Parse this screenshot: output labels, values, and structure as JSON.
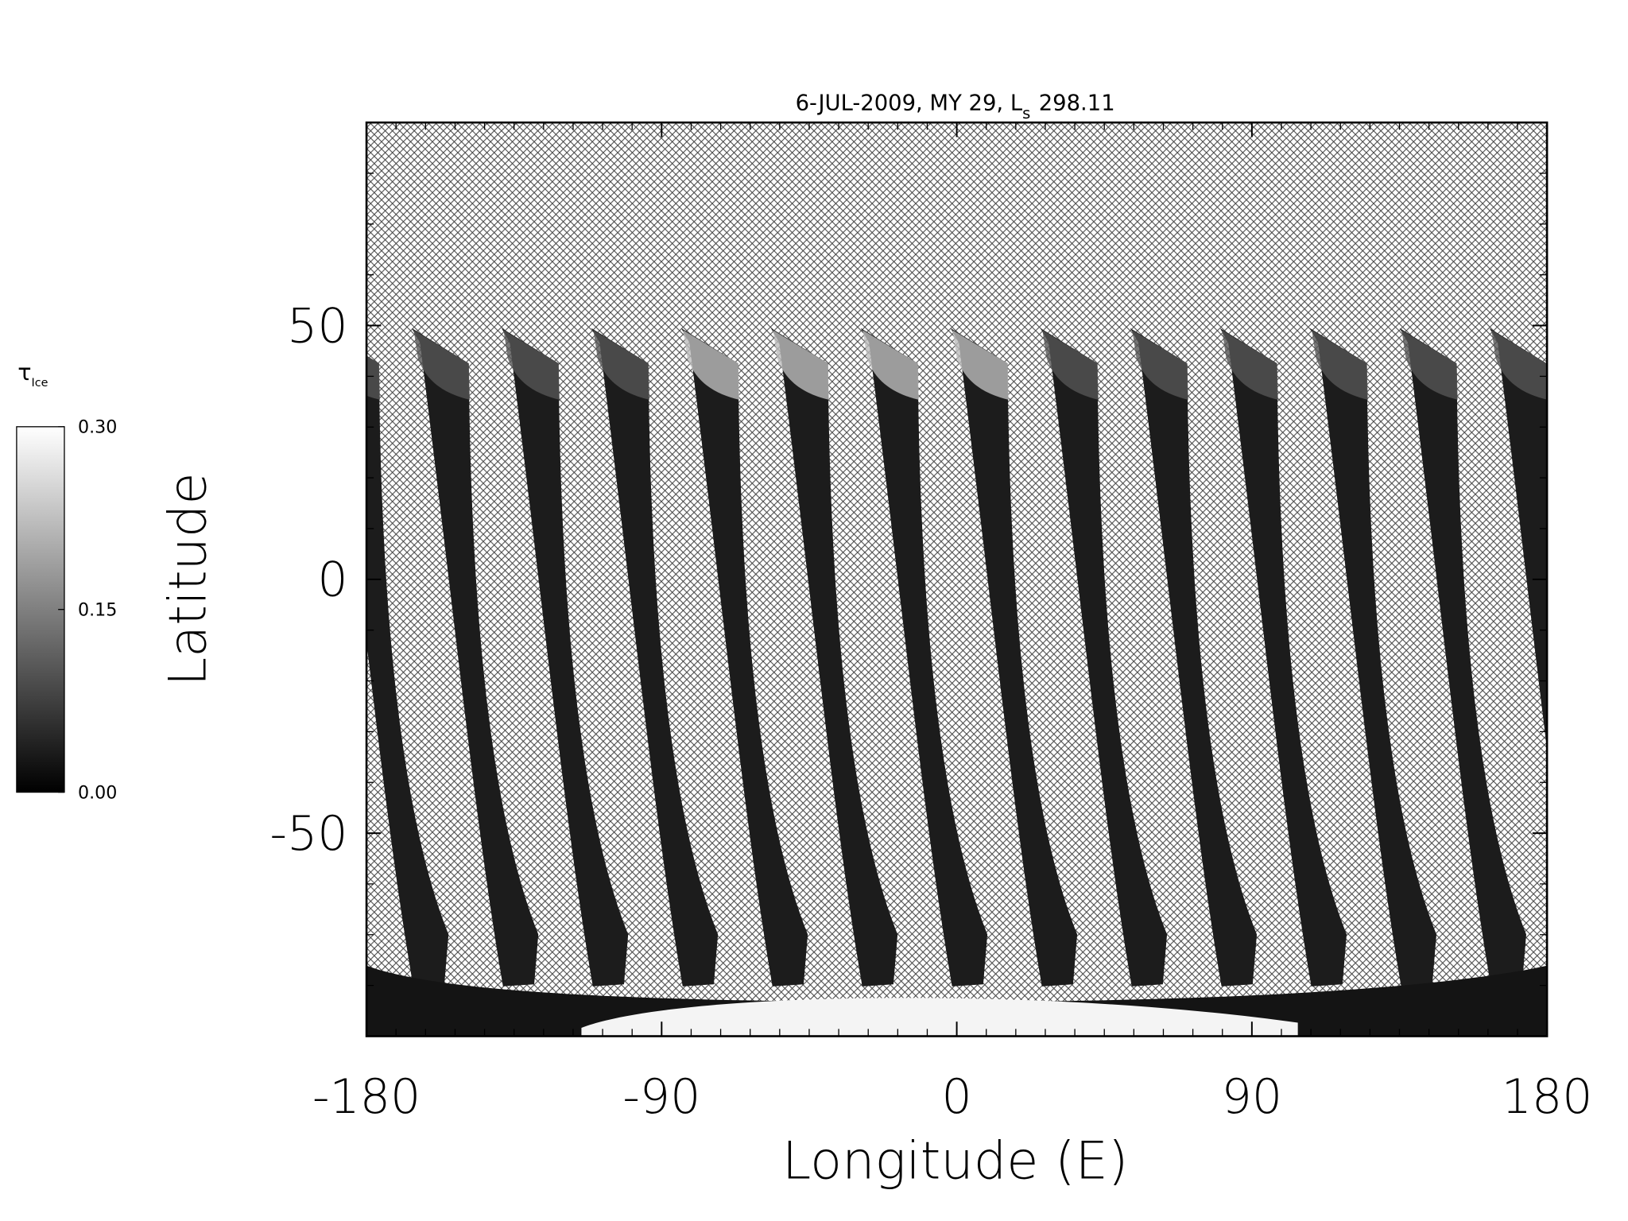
{
  "chart_data": {
    "type": "map",
    "title": "6-JUL-2009, MY 29,  L",
    "title_subscript": "s",
    "title_value": "298.11",
    "x_label": "Longitude (E)",
    "y_label": "Latitude",
    "xlim": [
      -180,
      180
    ],
    "xticks": [
      -180,
      -90,
      0,
      90,
      180
    ],
    "ylim": [
      -90,
      90
    ],
    "yticks": [
      -50,
      0,
      50
    ],
    "colorbar": {
      "label": "τ",
      "label_subscript": "Ice",
      "lim": [
        0,
        0.3
      ],
      "ticks": [
        {
          "value": 0,
          "label": "0.00"
        },
        {
          "value": 0.15,
          "label": "0.15"
        },
        {
          "value": 0.3,
          "label": "0.30"
        }
      ],
      "colors": [
        "#000000",
        "#ffffff"
      ]
    }
  }
}
